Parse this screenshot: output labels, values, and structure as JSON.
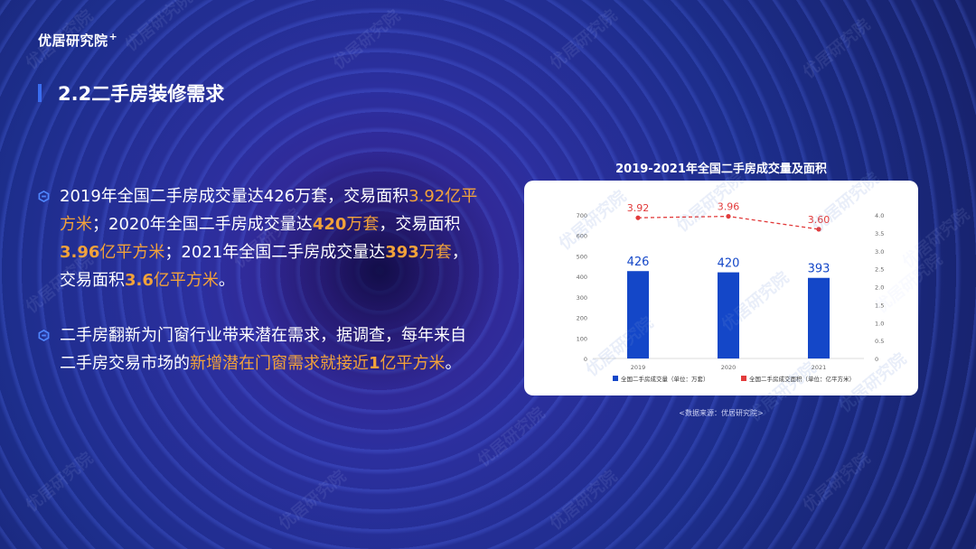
{
  "brand": {
    "logo_text": "优居研究院",
    "logo_mark": "+"
  },
  "section": {
    "title": "2.2二手房装修需求"
  },
  "bullets": [
    {
      "icon": "hexagon-bullet-icon",
      "segments": [
        {
          "text": "2019年全国二手房成交量达426万套，交易面积",
          "style": "normal"
        },
        {
          "text": "3.92亿平方米",
          "style": "highlight"
        },
        {
          "text": "；2020年全国二手房成交量达",
          "style": "normal"
        },
        {
          "text": "420",
          "style": "highlight-bold"
        },
        {
          "text": "万套",
          "style": "highlight"
        },
        {
          "text": "，交易面积",
          "style": "normal"
        },
        {
          "text": "3.96",
          "style": "highlight-bold"
        },
        {
          "text": "亿平方米",
          "style": "highlight"
        },
        {
          "text": "；2021年全国二手房成交量达",
          "style": "normal"
        },
        {
          "text": "393",
          "style": "highlight-bold"
        },
        {
          "text": "万套",
          "style": "highlight"
        },
        {
          "text": "，交易面积",
          "style": "normal"
        },
        {
          "text": "3.6",
          "style": "highlight-bold"
        },
        {
          "text": "亿平方米",
          "style": "highlight"
        },
        {
          "text": "。",
          "style": "normal"
        }
      ]
    },
    {
      "icon": "hexagon-bullet-icon",
      "segments": [
        {
          "text": "二手房翻新为门窗行业带来潜在需求，据调查，每年来自二手房交易市场的",
          "style": "normal"
        },
        {
          "text": "新增潜在门窗需求就接近",
          "style": "highlight"
        },
        {
          "text": "1",
          "style": "highlight-bold"
        },
        {
          "text": "亿平方米",
          "style": "highlight"
        },
        {
          "text": "。",
          "style": "normal"
        }
      ]
    }
  ],
  "watermark_text": "优居研究院",
  "colors": {
    "bar": "#1447c8",
    "line": "#e23b3b",
    "highlight": "#f2a23a",
    "axis_text": "#666666",
    "bullet_icon": "#4f86ff"
  },
  "chart_data": {
    "type": "bar",
    "title": "2019-2021年全国二手房成交量及面积",
    "categories": [
      "2019",
      "2020",
      "2021"
    ],
    "series": [
      {
        "name": "全国二手房成交量（单位：万套）",
        "type": "bar",
        "axis": "left",
        "values": [
          426,
          420,
          393
        ],
        "labels": [
          "426",
          "420",
          "393"
        ]
      },
      {
        "name": "全国二手房成交面积（单位：亿平方米）",
        "type": "line",
        "axis": "right",
        "values": [
          3.92,
          3.96,
          3.6
        ],
        "labels": [
          "3.92",
          "3.96",
          "3.60"
        ]
      }
    ],
    "y_left": {
      "ticks": [
        "0",
        "100",
        "200",
        "300",
        "400",
        "500",
        "600",
        "700"
      ],
      "range": [
        0,
        700
      ]
    },
    "y_right": {
      "ticks": [
        "0",
        "0.5",
        "1.0",
        "1.5",
        "2.0",
        "2.5",
        "3.0",
        "3.5",
        "4.0"
      ],
      "range": [
        0,
        4
      ]
    },
    "legend_position": "bottom",
    "grid": false,
    "source": "<数据来源：优居研究院>"
  }
}
